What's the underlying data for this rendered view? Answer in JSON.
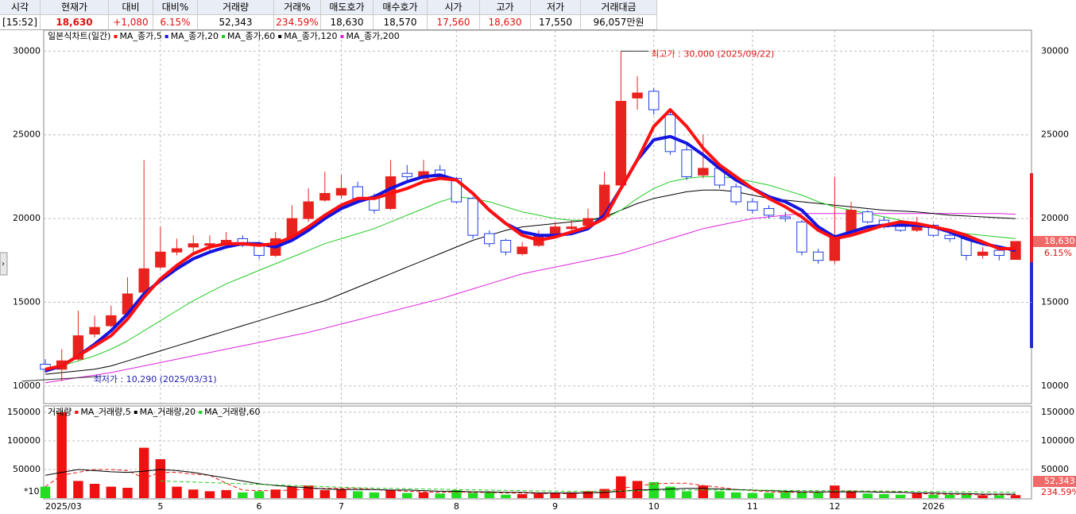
{
  "header": {
    "columns": [
      "시각",
      "현재가",
      "대비",
      "대비%",
      "거래량",
      "거래%",
      "매도호가",
      "매수호가",
      "시가",
      "고가",
      "저가",
      "거래대금"
    ],
    "values": [
      "[15:52]",
      "18,630",
      "+1,080",
      "6.15%",
      "52,343",
      "234.59%",
      "18,630",
      "18,570",
      "17,560",
      "18,630",
      "17,550",
      "96,057만원"
    ],
    "value_colors": [
      "#000000",
      "#e01010",
      "#e01010",
      "#e01010",
      "#000000",
      "#e01010",
      "#000000",
      "#000000",
      "#e01010",
      "#e01010",
      "#000000",
      "#000000"
    ]
  },
  "chart_data": [
    {
      "type": "candlestick",
      "legend_title": "일본식차트(일간)",
      "categories": [
        "2025/03",
        null,
        null,
        null,
        null,
        null,
        null,
        "5",
        null,
        null,
        null,
        null,
        null,
        "6",
        null,
        null,
        null,
        null,
        "7",
        null,
        null,
        null,
        null,
        null,
        null,
        "8",
        null,
        null,
        null,
        null,
        null,
        "9",
        null,
        null,
        null,
        null,
        null,
        "10",
        null,
        null,
        null,
        null,
        null,
        "11",
        null,
        null,
        null,
        null,
        "12",
        null,
        null,
        null,
        null,
        null,
        "2026",
        null,
        null,
        null,
        null,
        null
      ],
      "open": [
        11300,
        11000,
        11600,
        13100,
        13600,
        14300,
        15600,
        17100,
        18000,
        18300,
        18400,
        18500,
        18800,
        18500,
        17800,
        18900,
        20000,
        21100,
        21400,
        21900,
        21300,
        20600,
        22700,
        22400,
        22900,
        22400,
        21200,
        19100,
        18700,
        17900,
        18400,
        19000,
        19400,
        19600,
        20100,
        22000,
        27200,
        27600,
        26200,
        24100,
        22600,
        23000,
        21900,
        21000,
        20600,
        20100,
        19800,
        18000,
        17500,
        19200,
        20400,
        19900,
        19600,
        19300,
        19600,
        19000,
        18800,
        17800,
        18100,
        17560
      ],
      "high": [
        11600,
        12200,
        14500,
        14200,
        14800,
        16500,
        23500,
        19500,
        18800,
        19000,
        19000,
        19200,
        19000,
        18600,
        19200,
        20800,
        21800,
        22800,
        22600,
        22200,
        21500,
        23500,
        23200,
        23500,
        23200,
        22500,
        21300,
        19300,
        18800,
        18600,
        19300,
        19800,
        19900,
        20600,
        22800,
        30000,
        28500,
        27800,
        26400,
        24500,
        25000,
        23200,
        22100,
        21200,
        20800,
        20400,
        19900,
        18200,
        22500,
        21000,
        20500,
        20100,
        19900,
        20100,
        19700,
        19200,
        18900,
        18300,
        18200,
        18630
      ],
      "low": [
        10800,
        10290,
        11500,
        12900,
        13500,
        14200,
        15500,
        17000,
        17800,
        18000,
        18100,
        18300,
        18300,
        17600,
        17700,
        18800,
        19800,
        21000,
        21200,
        21000,
        20300,
        20500,
        22300,
        22300,
        22300,
        20900,
        18800,
        18300,
        17800,
        17800,
        18300,
        18900,
        19200,
        19500,
        20000,
        21900,
        26500,
        26200,
        23800,
        22300,
        22400,
        21800,
        20800,
        20300,
        20000,
        19800,
        17800,
        17300,
        17300,
        18900,
        19700,
        19400,
        19200,
        19200,
        18900,
        18600,
        17500,
        17600,
        17500,
        17550
      ],
      "close": [
        11000,
        11500,
        13000,
        13500,
        14200,
        15500,
        17000,
        18000,
        18200,
        18500,
        18500,
        18700,
        18400,
        17800,
        18800,
        20000,
        21000,
        21500,
        21800,
        21200,
        20500,
        22500,
        22500,
        22800,
        22500,
        21000,
        19000,
        18500,
        18000,
        18300,
        19000,
        19500,
        19500,
        20000,
        22000,
        27000,
        27500,
        26500,
        24000,
        22500,
        23000,
        22000,
        21000,
        20500,
        20200,
        20000,
        18000,
        17500,
        19000,
        20500,
        19800,
        19500,
        19300,
        19700,
        19000,
        18800,
        17800,
        18000,
        17800,
        18630
      ],
      "up_color": "#e8231f",
      "down_color": "#1e3ee0",
      "series": [
        {
          "name": "MA_종가,5",
          "color": "#ff1010",
          "width": 4,
          "values": [
            11000,
            11200,
            11800,
            12400,
            13000,
            14000,
            15300,
            16400,
            17200,
            17900,
            18300,
            18500,
            18500,
            18400,
            18500,
            18900,
            19500,
            20200,
            20800,
            21200,
            21200,
            21500,
            21800,
            22200,
            22400,
            22300,
            21500,
            20500,
            19700,
            19000,
            18700,
            18900,
            19200,
            19500,
            20000,
            21800,
            23500,
            25500,
            26500,
            25500,
            24200,
            23200,
            22500,
            21800,
            21200,
            20700,
            20100,
            19300,
            18800,
            19000,
            19300,
            19600,
            19800,
            19700,
            19500,
            19300,
            19000,
            18600,
            18200,
            18200
          ]
        },
        {
          "name": "MA_종가,20",
          "color": "#1414e0",
          "width": 4,
          "values": [
            10900,
            11200,
            11800,
            12500,
            13300,
            14300,
            15500,
            16300,
            17000,
            17600,
            18000,
            18300,
            18500,
            18500,
            18300,
            18700,
            19300,
            20000,
            20600,
            21000,
            21300,
            21800,
            22200,
            22500,
            22600,
            22300,
            21500,
            20500,
            19700,
            19200,
            19000,
            19000,
            19100,
            19400,
            20200,
            21800,
            23500,
            24700,
            24900,
            24500,
            23800,
            23000,
            22300,
            21800,
            21300,
            21000,
            20500,
            19500,
            18900,
            19200,
            19500,
            19600,
            19600,
            19600,
            19500,
            19200,
            18800,
            18500,
            18300,
            18100
          ]
        },
        {
          "name": "MA_종가,60",
          "color": "#22cc22",
          "width": 1,
          "values": [
            11000,
            11200,
            11500,
            11800,
            12200,
            12700,
            13300,
            13900,
            14500,
            15100,
            15600,
            16100,
            16500,
            16900,
            17300,
            17700,
            18100,
            18500,
            18800,
            19100,
            19400,
            19800,
            20200,
            20600,
            21000,
            21300,
            21200,
            21000,
            20700,
            20400,
            20200,
            20000,
            19900,
            19900,
            20000,
            20500,
            21200,
            21800,
            22200,
            22400,
            22500,
            22500,
            22400,
            22200,
            22000,
            21700,
            21400,
            21000,
            20700,
            20500,
            20300,
            20100,
            19900,
            19700,
            19500,
            19300,
            19100,
            19000,
            18900,
            18800
          ]
        },
        {
          "name": "MA_종가,120",
          "color": "#000000",
          "width": 1,
          "values": [
            10700,
            10800,
            10900,
            11000,
            11200,
            11500,
            11800,
            12100,
            12400,
            12700,
            13000,
            13300,
            13600,
            13900,
            14200,
            14500,
            14800,
            15100,
            15500,
            15900,
            16300,
            16700,
            17100,
            17500,
            17900,
            18300,
            18700,
            19000,
            19300,
            19500,
            19600,
            19700,
            19800,
            19900,
            20100,
            20500,
            20900,
            21200,
            21400,
            21600,
            21700,
            21700,
            21600,
            21400,
            21200,
            21100,
            21000,
            20900,
            20800,
            20700,
            20600,
            20500,
            20450,
            20400,
            20300,
            20200,
            20150,
            20100,
            20050,
            20000
          ]
        },
        {
          "name": "MA_종가,200",
          "color": "#dd22dd",
          "width": 1,
          "values": [
            10200,
            10350,
            10500,
            10650,
            10800,
            11000,
            11200,
            11400,
            11600,
            11800,
            12000,
            12200,
            12400,
            12600,
            12800,
            13000,
            13200,
            13450,
            13700,
            13950,
            14200,
            14450,
            14700,
            14950,
            15200,
            15500,
            15800,
            16100,
            16400,
            16700,
            16900,
            17100,
            17300,
            17500,
            17700,
            17900,
            18200,
            18500,
            18800,
            19100,
            19400,
            19600,
            19800,
            20000,
            20100,
            20200,
            20300,
            20300,
            20300,
            20300,
            20300,
            20300,
            20300,
            20300,
            20300,
            20300,
            20300,
            20300,
            20300,
            20250
          ]
        }
      ],
      "ylim": [
        8950,
        31250
      ],
      "yticks": [
        10000,
        15000,
        20000,
        25000,
        30000
      ],
      "grid": true,
      "high_label": "최고가 : 30,000 (2025/09/22)",
      "low_label": "최저가 : 10,290 (2025/03/31)",
      "last_price_label": "18,630",
      "last_change_label": "6.15%"
    },
    {
      "type": "bar",
      "legend_title": "거래량",
      "unit_label": "*10",
      "values": [
        20000,
        150000,
        30000,
        25000,
        20000,
        18000,
        88000,
        68000,
        20000,
        15000,
        12000,
        14000,
        10000,
        12000,
        15000,
        20000,
        22000,
        14000,
        16000,
        12000,
        10000,
        14000,
        9000,
        10000,
        8000,
        14000,
        9000,
        10000,
        6000,
        7000,
        8000,
        9000,
        10000,
        12000,
        16000,
        38000,
        30000,
        28000,
        20000,
        12000,
        22000,
        12000,
        10000,
        9000,
        9000,
        11000,
        10000,
        10000,
        22000,
        12000,
        8000,
        7000,
        6000,
        8000,
        6000,
        6000,
        7000,
        5000,
        5000,
        5234
      ],
      "up_color": "#ee1111",
      "down_color": "#22dd22",
      "series": [
        {
          "name": "MA_거래량,5",
          "color": "#ee1111",
          "values": [
            20000,
            40000,
            45000,
            50000,
            50000,
            48000,
            35000,
            45000,
            45000,
            42000,
            40000,
            26000,
            14000,
            13000,
            13000,
            14000,
            16000,
            17000,
            17000,
            17000,
            15000,
            13000,
            12000,
            11000,
            10000,
            11000,
            10000,
            10000,
            9000,
            9000,
            8000,
            8000,
            8000,
            9000,
            11000,
            17000,
            21000,
            25000,
            26000,
            26000,
            22000,
            19000,
            15000,
            13000,
            11000,
            10000,
            10000,
            10000,
            12000,
            13000,
            12000,
            12000,
            11000,
            8000,
            7000,
            7000,
            6000,
            6000,
            6000,
            6000
          ]
        },
        {
          "name": "MA_거래량,20",
          "color": "#000000",
          "values": [
            40000,
            45000,
            50000,
            48000,
            46000,
            45000,
            47000,
            50000,
            48000,
            45000,
            40000,
            35000,
            30000,
            25000,
            22000,
            20000,
            18000,
            16000,
            15000,
            15000,
            15000,
            14000,
            14000,
            13000,
            12000,
            12000,
            11000,
            11000,
            10000,
            10000,
            9000,
            9000,
            9000,
            9000,
            10000,
            12000,
            14000,
            15000,
            16000,
            17000,
            17000,
            16000,
            15000,
            14000,
            13000,
            12000,
            11000,
            11000,
            11000,
            11000,
            11000,
            10000,
            10000,
            9000,
            9000,
            8000,
            8000,
            7000,
            7000,
            7000
          ]
        },
        {
          "name": "MA_거래량,60",
          "color": "#22cc22",
          "values": [
            null,
            null,
            null,
            null,
            null,
            null,
            null,
            30000,
            29000,
            28000,
            27000,
            26000,
            25000,
            24000,
            23000,
            22000,
            21000,
            20000,
            19000,
            18000,
            17500,
            17000,
            16500,
            16000,
            15500,
            15000,
            14500,
            14000,
            13500,
            13000,
            12500,
            12200,
            12000,
            12000,
            12200,
            12500,
            13000,
            13500,
            14000,
            14200,
            14300,
            14300,
            14200,
            14000,
            13800,
            13500,
            13200,
            13000,
            12800,
            12600,
            12400,
            12200,
            12000,
            11800,
            11500,
            11200,
            11000,
            10800,
            10500,
            10300
          ]
        }
      ],
      "ylim": [
        0,
        161000
      ],
      "yticks": [
        50000,
        100000,
        150000
      ],
      "grid": true,
      "last_volume_label": "52,343",
      "last_volume_change_label": "234.59%"
    }
  ]
}
